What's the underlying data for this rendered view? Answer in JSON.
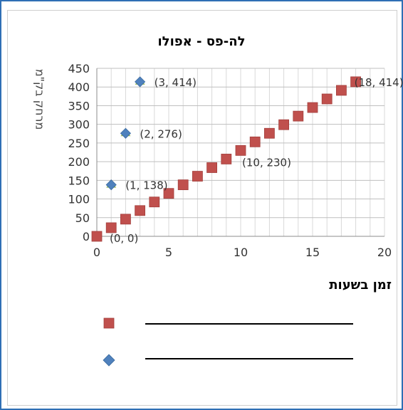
{
  "chart_data": {
    "type": "scatter",
    "title": "לה-פס - אפולו",
    "xlabel": "זמן בשעות",
    "ylabel": "מרחק בק\"מ",
    "xlim": [
      0,
      20
    ],
    "ylim": [
      0,
      450
    ],
    "x_ticks": [
      0,
      5,
      10,
      15,
      20
    ],
    "y_ticks": [
      0,
      50,
      100,
      150,
      200,
      250,
      300,
      350,
      400,
      450
    ],
    "grid": true,
    "series": [
      {
        "marker": "square",
        "color": "#c0504d",
        "points": [
          [
            0,
            0
          ],
          [
            1,
            23
          ],
          [
            2,
            46
          ],
          [
            3,
            69
          ],
          [
            4,
            92
          ],
          [
            5,
            115
          ],
          [
            6,
            138
          ],
          [
            7,
            161
          ],
          [
            8,
            184
          ],
          [
            9,
            207
          ],
          [
            10,
            230
          ],
          [
            11,
            253
          ],
          [
            12,
            276
          ],
          [
            13,
            299
          ],
          [
            14,
            322
          ],
          [
            15,
            345
          ],
          [
            16,
            368
          ],
          [
            17,
            391
          ],
          [
            18,
            414
          ]
        ]
      },
      {
        "marker": "diamond",
        "color": "#4f81bd",
        "points": [
          [
            1,
            138
          ],
          [
            2,
            276
          ],
          [
            3,
            414
          ]
        ]
      }
    ],
    "data_labels": [
      {
        "x": 0,
        "y": 0,
        "text": "(0, 0)"
      },
      {
        "x": 1,
        "y": 138,
        "text": "(1, 138)"
      },
      {
        "x": 2,
        "y": 276,
        "text": "(2, 276)"
      },
      {
        "x": 3,
        "y": 414,
        "text": "(3, 414)"
      },
      {
        "x": 10,
        "y": 230,
        "text": "(10, 230)"
      },
      {
        "x": 18,
        "y": 414,
        "text": "(18, 414)"
      }
    ],
    "legend_entries": [
      {
        "marker": "square",
        "color": "#c0504d",
        "text": ""
      },
      {
        "marker": "diamond",
        "color": "#4f81bd",
        "text": ""
      }
    ]
  }
}
